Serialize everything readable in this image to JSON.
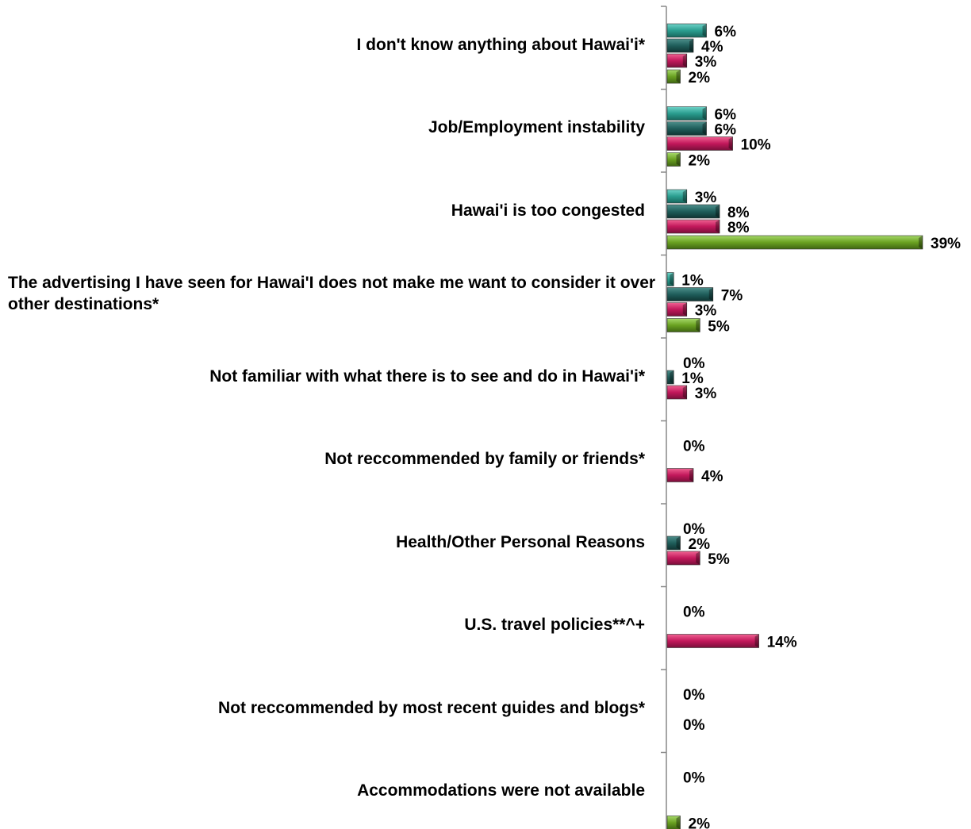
{
  "chart_data": {
    "type": "bar",
    "orientation": "horizontal",
    "categories": [
      "I don't know anything about Hawai'i*",
      "Job/Employment instability",
      "Hawai'i is too congested",
      "The advertising I have seen for Hawai'I does not make me want to consider it over other destinations*",
      "Not familiar with what there is to see and do in Hawai'i*",
      "Not reccommended by family or friends*",
      "Health/Other Personal Reasons",
      "U.S. travel policies**^+",
      "Not reccommended by most recent guides and blogs*",
      "Accommodations were not available"
    ],
    "series": [
      {
        "color": "#2a9d8f",
        "values": [
          6,
          6,
          3,
          1,
          0,
          0,
          0,
          0,
          0,
          0
        ]
      },
      {
        "color": "#1f5e5b",
        "values": [
          4,
          6,
          8,
          7,
          1,
          null,
          2,
          null,
          null,
          null
        ]
      },
      {
        "color": "#c2185b",
        "values": [
          3,
          10,
          8,
          3,
          3,
          4,
          5,
          14,
          0,
          null
        ]
      },
      {
        "color": "#6aa121",
        "values": [
          2,
          2,
          39,
          5,
          null,
          null,
          null,
          null,
          null,
          2
        ]
      }
    ],
    "value_suffix": "%",
    "grid": false,
    "legend": "none"
  }
}
